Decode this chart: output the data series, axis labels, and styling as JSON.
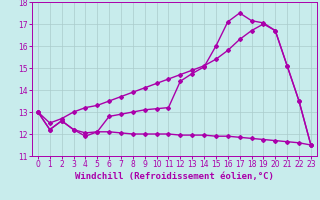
{
  "xlabel": "Windchill (Refroidissement éolien,°C)",
  "bg_color": "#c8ecec",
  "line_color": "#aa00aa",
  "grid_color": "#aacccc",
  "xlim": [
    -0.5,
    23.5
  ],
  "ylim": [
    11,
    18
  ],
  "xticks": [
    0,
    1,
    2,
    3,
    4,
    5,
    6,
    7,
    8,
    9,
    10,
    11,
    12,
    13,
    14,
    15,
    16,
    17,
    18,
    19,
    20,
    21,
    22,
    23
  ],
  "yticks": [
    11,
    12,
    13,
    14,
    15,
    16,
    17,
    18
  ],
  "line1_x": [
    0,
    1,
    2,
    3,
    4,
    5,
    6,
    7,
    8,
    9,
    10,
    11,
    12,
    13,
    14,
    15,
    16,
    17,
    18,
    19,
    20,
    21,
    22,
    23
  ],
  "line1_y": [
    13.0,
    12.2,
    12.6,
    12.2,
    11.9,
    12.1,
    12.8,
    12.9,
    13.0,
    13.1,
    13.15,
    13.2,
    14.4,
    14.75,
    15.05,
    16.0,
    17.1,
    17.5,
    17.15,
    17.05,
    16.7,
    15.1,
    13.5,
    11.5
  ],
  "line2_x": [
    0,
    1,
    2,
    3,
    4,
    5,
    6,
    7,
    8,
    9,
    10,
    11,
    12,
    13,
    14,
    15,
    16,
    17,
    18,
    19,
    20,
    21,
    22,
    23
  ],
  "line2_y": [
    13.0,
    12.5,
    12.7,
    13.0,
    13.2,
    13.3,
    13.5,
    13.7,
    13.9,
    14.1,
    14.3,
    14.5,
    14.7,
    14.9,
    15.1,
    15.4,
    15.8,
    16.3,
    16.7,
    17.0,
    16.7,
    15.1,
    13.5,
    11.5
  ],
  "line3_x": [
    0,
    1,
    2,
    3,
    4,
    5,
    6,
    7,
    8,
    9,
    10,
    11,
    12,
    13,
    14,
    15,
    16,
    17,
    18,
    19,
    20,
    21,
    22,
    23
  ],
  "line3_y": [
    13.0,
    12.2,
    12.6,
    12.2,
    12.05,
    12.1,
    12.1,
    12.05,
    12.0,
    12.0,
    12.0,
    12.0,
    11.95,
    11.95,
    11.95,
    11.9,
    11.9,
    11.85,
    11.8,
    11.75,
    11.7,
    11.65,
    11.6,
    11.5
  ],
  "marker": "D",
  "markersize": 2.0,
  "linewidth": 1.0,
  "xlabel_fontsize": 6.5,
  "tick_fontsize": 5.5
}
